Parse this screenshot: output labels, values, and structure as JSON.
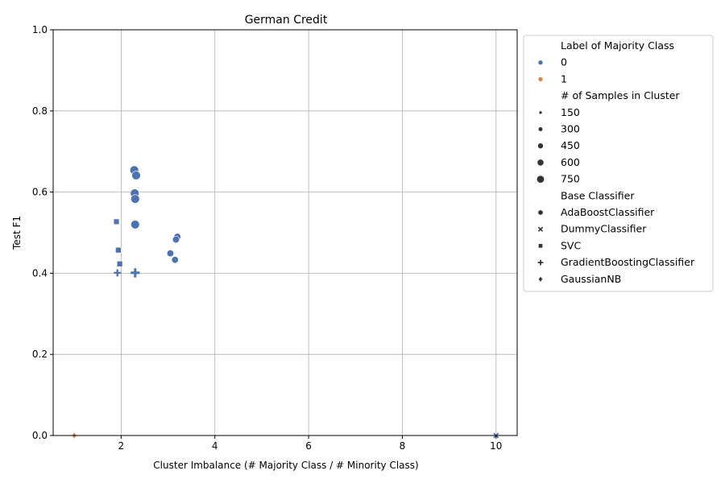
{
  "chart_data": {
    "type": "scatter",
    "title": "German Credit",
    "xlabel": "Cluster Imbalance (# Majority Class / # Minority Class)",
    "ylabel": "Test F1",
    "xlim": [
      0.55,
      10.45
    ],
    "ylim": [
      0,
      1.0
    ],
    "xticks": [
      2,
      4,
      6,
      8,
      10
    ],
    "yticks": [
      0.0,
      0.2,
      0.4,
      0.6,
      0.8,
      1.0
    ],
    "xtick_labels": [
      "2",
      "4",
      "6",
      "8",
      "10"
    ],
    "ytick_labels": [
      "0.0",
      "0.2",
      "0.4",
      "0.6",
      "0.8",
      "1.0"
    ],
    "grid": true,
    "legend_position": "outside-right",
    "legend": {
      "hue_title": "Label of Majority Class",
      "hue": [
        {
          "label": "0",
          "color": "#4c72b0"
        },
        {
          "label": "1",
          "color": "#dd8452"
        }
      ],
      "size_title": "# of Samples in Cluster",
      "sizes": [
        "150",
        "300",
        "450",
        "600",
        "750"
      ],
      "style_title": "Base Classifier",
      "styles": [
        {
          "label": "AdaBoostClassifier",
          "marker": "circle"
        },
        {
          "label": "DummyClassifier",
          "marker": "x"
        },
        {
          "label": "SVC",
          "marker": "square"
        },
        {
          "label": "GradientBoostingClassifier",
          "marker": "plus"
        },
        {
          "label": "GaussianNB",
          "marker": "diamond"
        }
      ]
    },
    "points": [
      {
        "x": 2.28,
        "y": 0.654,
        "label": "0",
        "classifier": "AdaBoostClassifier",
        "samples": 750
      },
      {
        "x": 2.32,
        "y": 0.641,
        "label": "0",
        "classifier": "AdaBoostClassifier",
        "samples": 750
      },
      {
        "x": 2.29,
        "y": 0.597,
        "label": "0",
        "classifier": "AdaBoostClassifier",
        "samples": 750
      },
      {
        "x": 2.3,
        "y": 0.583,
        "label": "0",
        "classifier": "AdaBoostClassifier",
        "samples": 750
      },
      {
        "x": 2.3,
        "y": 0.52,
        "label": "0",
        "classifier": "AdaBoostClassifier",
        "samples": 750
      },
      {
        "x": 3.2,
        "y": 0.49,
        "label": "0",
        "classifier": "AdaBoostClassifier",
        "samples": 300
      },
      {
        "x": 3.17,
        "y": 0.483,
        "label": "0",
        "classifier": "AdaBoostClassifier",
        "samples": 300
      },
      {
        "x": 3.05,
        "y": 0.449,
        "label": "0",
        "classifier": "AdaBoostClassifier",
        "samples": 300
      },
      {
        "x": 3.15,
        "y": 0.433,
        "label": "0",
        "classifier": "AdaBoostClassifier",
        "samples": 300
      },
      {
        "x": 1.9,
        "y": 0.527,
        "label": "0",
        "classifier": "SVC",
        "samples": 300
      },
      {
        "x": 1.94,
        "y": 0.457,
        "label": "0",
        "classifier": "SVC",
        "samples": 300
      },
      {
        "x": 1.97,
        "y": 0.423,
        "label": "0",
        "classifier": "SVC",
        "samples": 300
      },
      {
        "x": 1.92,
        "y": 0.401,
        "label": "0",
        "classifier": "GradientBoostingClassifier",
        "samples": 300
      },
      {
        "x": 2.3,
        "y": 0.401,
        "label": "0",
        "classifier": "GradientBoostingClassifier",
        "samples": 750
      },
      {
        "x": 1.0,
        "y": 0.0,
        "label": "1",
        "classifier": "GaussianNB",
        "samples": 150
      },
      {
        "x": 10.0,
        "y": 0.0,
        "label": "0",
        "classifier": "DummyClassifier",
        "samples": 150
      }
    ]
  }
}
